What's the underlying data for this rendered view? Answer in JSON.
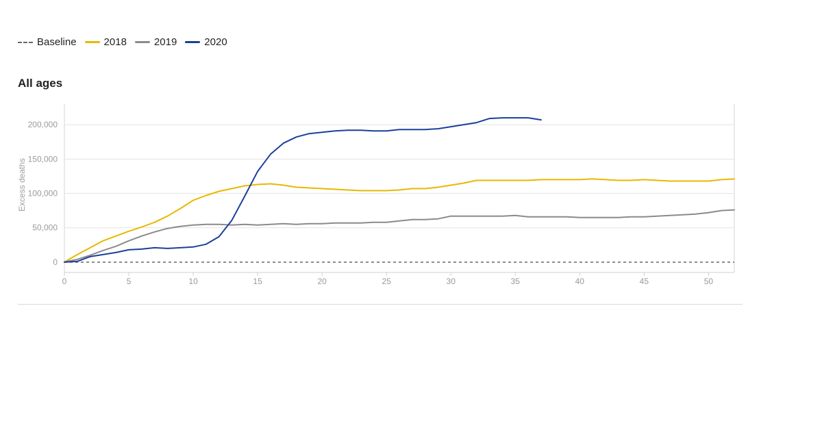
{
  "legend": {
    "items": [
      {
        "label": "Baseline",
        "style": "dashed",
        "color": "#666666"
      },
      {
        "label": "2018",
        "style": "solid",
        "color": "#e8b800"
      },
      {
        "label": "2019",
        "style": "solid",
        "color": "#8a8a8a"
      },
      {
        "label": "2020",
        "style": "solid",
        "color": "#1a3f9a"
      }
    ]
  },
  "panel": {
    "title": "All ages"
  },
  "chart_data": {
    "type": "line",
    "title": "All ages",
    "ylabel": "Excess deaths",
    "xlabel": "",
    "xlim": [
      0,
      52
    ],
    "ylim": [
      -15000,
      230000
    ],
    "x_ticks": [
      0,
      5,
      10,
      15,
      20,
      25,
      30,
      35,
      40,
      45,
      50
    ],
    "y_ticks": [
      0,
      50000,
      100000,
      150000,
      200000
    ],
    "y_tick_labels": [
      "0",
      "50,000",
      "100,000",
      "150,000",
      "200,000"
    ],
    "grid": "horizontal",
    "legend_position": "top-left",
    "baseline": {
      "name": "Baseline",
      "value": 0,
      "style": "dashed",
      "color": "#666666"
    },
    "series": [
      {
        "name": "2018",
        "color": "#e8b800",
        "x": [
          0,
          1,
          2,
          3,
          4,
          5,
          6,
          7,
          8,
          9,
          10,
          11,
          12,
          13,
          14,
          15,
          16,
          17,
          18,
          19,
          20,
          21,
          22,
          23,
          24,
          25,
          26,
          27,
          28,
          29,
          30,
          31,
          32,
          33,
          34,
          35,
          36,
          37,
          38,
          39,
          40,
          41,
          42,
          43,
          44,
          45,
          46,
          47,
          48,
          49,
          50,
          51,
          52
        ],
        "values": [
          0,
          11000,
          21000,
          31000,
          38000,
          45000,
          51000,
          58000,
          67000,
          78000,
          90000,
          97000,
          103000,
          107000,
          111000,
          113000,
          114000,
          112000,
          109000,
          108000,
          107000,
          106000,
          105000,
          104000,
          104000,
          104000,
          105000,
          107000,
          107000,
          109000,
          112000,
          115000,
          119000,
          119000,
          119000,
          119000,
          119000,
          120000,
          120000,
          120000,
          120000,
          121000,
          120000,
          119000,
          119000,
          120000,
          119000,
          118000,
          118000,
          118000,
          118000,
          120000,
          121000
        ]
      },
      {
        "name": "2019",
        "color": "#8a8a8a",
        "x": [
          0,
          1,
          2,
          3,
          4,
          5,
          6,
          7,
          8,
          9,
          10,
          11,
          12,
          13,
          14,
          15,
          16,
          17,
          18,
          19,
          20,
          21,
          22,
          23,
          24,
          25,
          26,
          27,
          28,
          29,
          30,
          31,
          32,
          33,
          34,
          35,
          36,
          37,
          38,
          39,
          40,
          41,
          42,
          43,
          44,
          45,
          46,
          47,
          48,
          49,
          50,
          51,
          52
        ],
        "values": [
          0,
          4000,
          10000,
          17000,
          23000,
          31000,
          38000,
          44000,
          49000,
          52000,
          54000,
          55000,
          55000,
          54000,
          55000,
          54000,
          55000,
          56000,
          55000,
          56000,
          56000,
          57000,
          57000,
          57000,
          58000,
          58000,
          60000,
          62000,
          62000,
          63000,
          67000,
          67000,
          67000,
          67000,
          67000,
          68000,
          66000,
          66000,
          66000,
          66000,
          65000,
          65000,
          65000,
          65000,
          66000,
          66000,
          67000,
          68000,
          69000,
          70000,
          72000,
          75000,
          76000
        ]
      },
      {
        "name": "2020",
        "color": "#1a3f9a",
        "x": [
          0,
          1,
          2,
          3,
          4,
          5,
          6,
          7,
          8,
          9,
          10,
          11,
          12,
          13,
          14,
          15,
          16,
          17,
          18,
          19,
          20,
          21,
          22,
          23,
          24,
          25,
          26,
          27,
          28,
          29,
          30,
          31,
          32,
          33,
          34,
          35,
          36,
          37
        ],
        "values": [
          0,
          1000,
          8000,
          11000,
          14000,
          18000,
          19000,
          21000,
          20000,
          21000,
          22000,
          26000,
          37000,
          61000,
          96000,
          132000,
          157000,
          173000,
          182000,
          187000,
          189000,
          191000,
          192000,
          192000,
          191000,
          191000,
          193000,
          193000,
          193000,
          194000,
          197000,
          200000,
          203000,
          209000,
          210000,
          210000,
          210000,
          207000
        ]
      }
    ]
  }
}
